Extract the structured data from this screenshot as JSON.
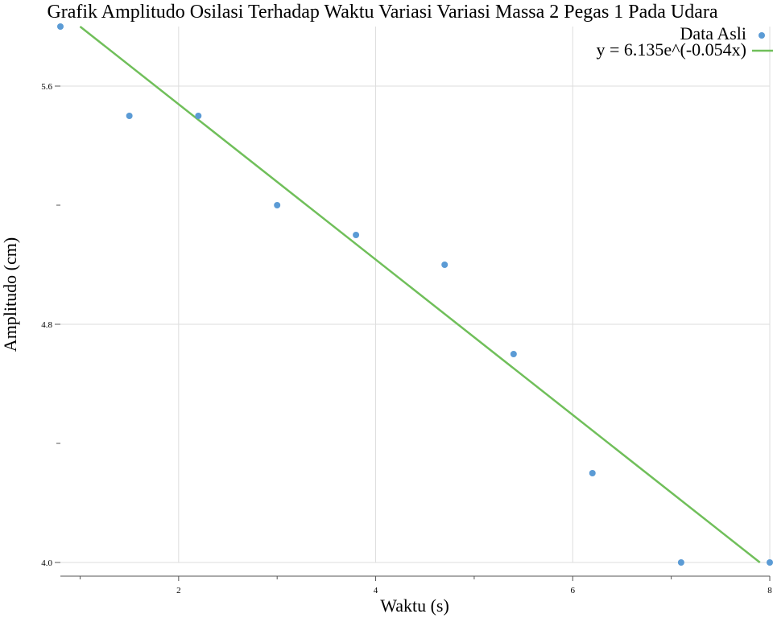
{
  "chart_data": {
    "type": "scatter",
    "title": "Grafik Amplitudo Osilasi Terhadap Waktu Variasi Variasi Massa 2 Pegas 1 Pada Udara",
    "xlabel": "Waktu (s)",
    "ylabel": "Amplitudo (cm)",
    "xlim": [
      0.8,
      8.0
    ],
    "ylim": [
      4.0,
      5.8
    ],
    "x_ticks": [
      2,
      4,
      6,
      8
    ],
    "x_tick_labels": [
      "2",
      "4",
      "6",
      "8"
    ],
    "x_minor_ticks": [
      1,
      3,
      5,
      7
    ],
    "y_ticks": [
      4.0,
      4.8,
      5.6
    ],
    "y_tick_labels": [
      "4.0",
      "4.8",
      "5.6"
    ],
    "y_minor_ticks": [
      4.4,
      5.2
    ],
    "grid": true,
    "legend_position": "top-right",
    "series": [
      {
        "name": "Data Asli",
        "kind": "scatter",
        "color": "#5b9bd5",
        "x": [
          0.8,
          1.5,
          2.2,
          3.0,
          3.8,
          4.7,
          5.4,
          6.2,
          7.1,
          8.0
        ],
        "y": [
          5.8,
          5.5,
          5.5,
          5.2,
          5.1,
          5.0,
          4.7,
          4.3,
          4.0,
          4.0
        ]
      },
      {
        "name": "y = 6.135e^(-0.054x)",
        "kind": "line",
        "color": "#70bf5a",
        "x": [
          1.0,
          7.9
        ],
        "y": [
          5.8,
          4.0
        ]
      }
    ]
  }
}
